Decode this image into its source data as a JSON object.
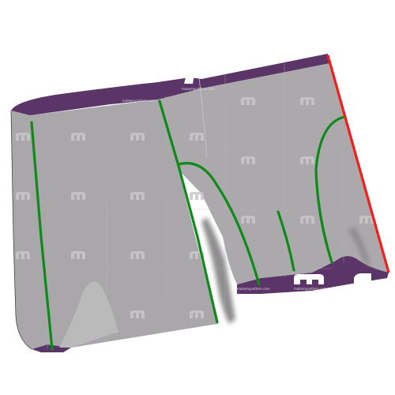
{
  "scene": {
    "type": "3d-garment-preview",
    "garment": "boxer-shorts",
    "watermark_text": "makemypattern.com",
    "colors": {
      "background": "#ffffff",
      "fabric": "#a9a7a9",
      "fabric_shadow": "#8f8d8f",
      "lining": "#5b3468",
      "seam_green": "#0d8a1a",
      "edge_red": "#ff1a1a",
      "watermark": "#c9c7c9"
    },
    "icons": [
      "watermark-logo-icon"
    ]
  }
}
